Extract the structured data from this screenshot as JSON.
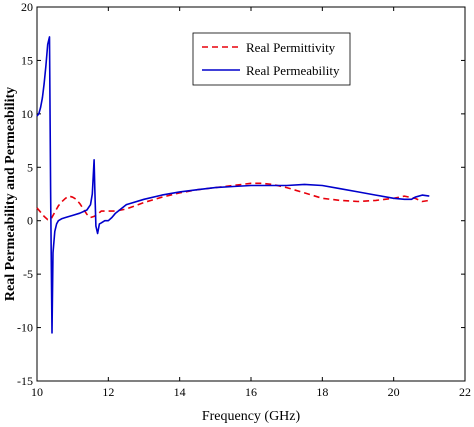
{
  "chart_data": {
    "type": "line",
    "xlabel": "Frequency (GHz)",
    "ylabel": "Real Permeability and Permeability",
    "xlim": [
      10,
      22
    ],
    "ylim": [
      -15,
      20
    ],
    "xticks": [
      10,
      12,
      14,
      16,
      18,
      20,
      22
    ],
    "yticks": [
      -15,
      -10,
      -5,
      0,
      5,
      10,
      15,
      20
    ],
    "grid": false,
    "legend_position": "top-right",
    "series": [
      {
        "name": "Real Permittivity",
        "color": "#e8000b",
        "dash": "dashed",
        "x": [
          10.0,
          10.1,
          10.2,
          10.3,
          10.4,
          10.5,
          10.6,
          10.7,
          10.8,
          10.9,
          11.0,
          11.1,
          11.2,
          11.3,
          11.4,
          11.5,
          11.6,
          11.7,
          11.8,
          11.9,
          12.0,
          12.2,
          12.5,
          13.0,
          13.5,
          14.0,
          14.5,
          15.0,
          15.5,
          16.0,
          16.3,
          16.6,
          17.0,
          17.5,
          18.0,
          18.5,
          19.0,
          19.5,
          20.0,
          20.3,
          20.6,
          20.8,
          21.0
        ],
        "y": [
          1.2,
          0.8,
          0.4,
          0.1,
          0.2,
          0.8,
          1.4,
          1.8,
          2.1,
          2.3,
          2.2,
          2.0,
          1.6,
          1.1,
          0.6,
          0.3,
          0.4,
          0.6,
          0.9,
          0.9,
          0.9,
          0.9,
          1.1,
          1.7,
          2.2,
          2.6,
          2.9,
          3.1,
          3.3,
          3.5,
          3.5,
          3.4,
          3.1,
          2.6,
          2.1,
          1.9,
          1.8,
          1.9,
          2.1,
          2.3,
          2.1,
          1.8,
          1.9
        ]
      },
      {
        "name": "Real Permeability",
        "color": "#0000cc",
        "dash": "solid",
        "x": [
          10.0,
          10.05,
          10.1,
          10.15,
          10.2,
          10.25,
          10.3,
          10.35,
          10.38,
          10.4,
          10.42,
          10.45,
          10.5,
          10.55,
          10.6,
          10.7,
          10.8,
          11.0,
          11.2,
          11.4,
          11.5,
          11.55,
          11.6,
          11.62,
          11.65,
          11.7,
          11.75,
          11.8,
          11.85,
          11.9,
          12.0,
          12.1,
          12.2,
          12.5,
          13.0,
          13.5,
          14.0,
          14.5,
          15.0,
          15.5,
          16.0,
          16.5,
          17.0,
          17.5,
          18.0,
          18.5,
          19.0,
          19.5,
          20.0,
          20.3,
          20.5,
          20.6,
          20.8,
          21.0
        ],
        "y": [
          9.8,
          10.0,
          10.6,
          11.5,
          12.8,
          14.5,
          16.5,
          17.2,
          3.0,
          -4.0,
          -10.5,
          -3.0,
          -1.0,
          -0.3,
          0.0,
          0.2,
          0.3,
          0.5,
          0.7,
          1.0,
          1.5,
          2.5,
          5.7,
          3.0,
          -0.5,
          -1.2,
          -0.3,
          -0.2,
          -0.1,
          0.0,
          0.0,
          0.3,
          0.7,
          1.5,
          2.0,
          2.4,
          2.7,
          2.9,
          3.1,
          3.2,
          3.3,
          3.3,
          3.3,
          3.4,
          3.3,
          3.0,
          2.7,
          2.4,
          2.1,
          2.0,
          2.0,
          2.2,
          2.4,
          2.3
        ]
      }
    ]
  }
}
